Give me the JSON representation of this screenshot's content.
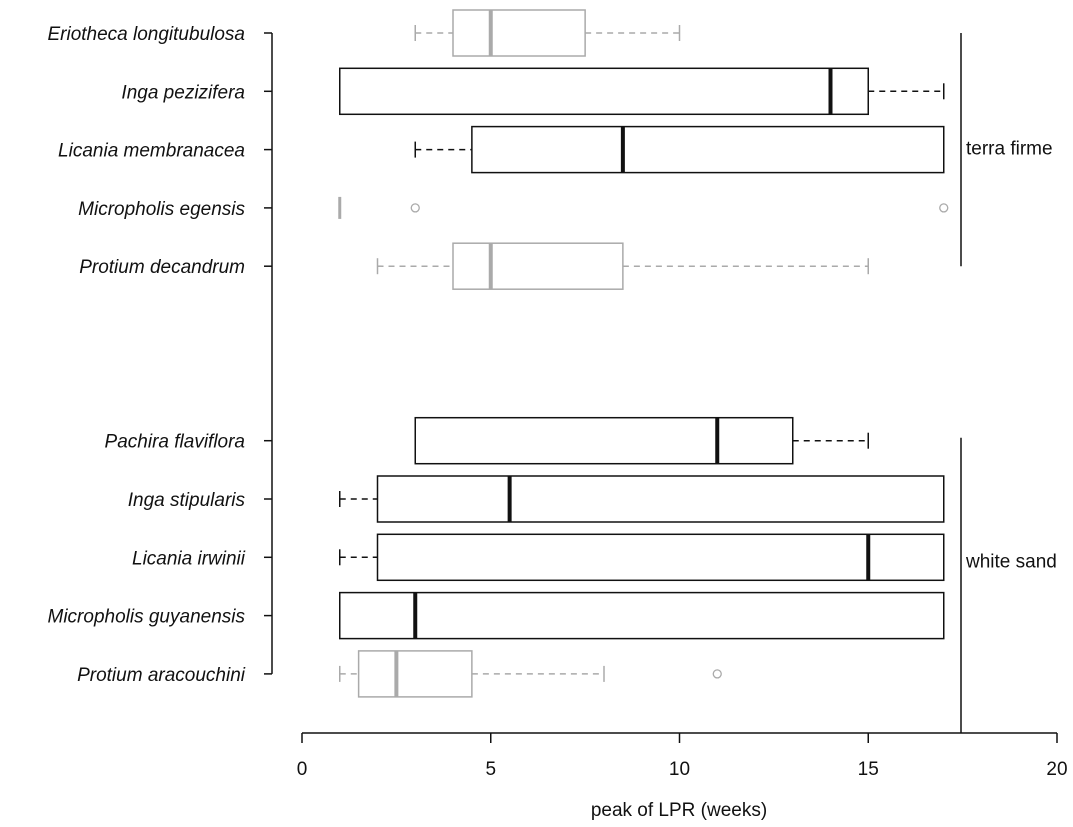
{
  "chart_data": {
    "type": "boxplot",
    "orientation": "horizontal",
    "xlabel": "peak of LPR (weeks)",
    "xlim": [
      0,
      20
    ],
    "x_ticks": [
      0,
      5,
      10,
      15,
      20
    ],
    "colors": {
      "dark": "#111111",
      "light": "#aaaaaa"
    },
    "groups": [
      {
        "label": "terra firme",
        "first": 0,
        "last": 4
      },
      {
        "label": "white sand",
        "first": 5,
        "last": 9
      }
    ],
    "series": [
      {
        "name": "Eriotheca longitubulosa",
        "group": "terra firme",
        "style": "light",
        "min": 3,
        "q1": 4,
        "median": 5,
        "q3": 7.5,
        "max": 10,
        "outliers": []
      },
      {
        "name": "Inga pezizifera",
        "group": "terra firme",
        "style": "dark",
        "min": 1,
        "q1": 1,
        "median": 14,
        "q3": 15,
        "max": 17,
        "outliers": []
      },
      {
        "name": "Licania membranacea",
        "group": "terra firme",
        "style": "dark",
        "min": 3,
        "q1": 4.5,
        "median": 8.5,
        "q3": 17,
        "max": 17,
        "outliers": []
      },
      {
        "name": "Micropholis egensis",
        "group": "terra firme",
        "style": "light",
        "min": 1,
        "q1": 1,
        "median": 1,
        "q3": 1,
        "max": 1,
        "outliers": [
          3,
          17
        ]
      },
      {
        "name": "Protium decandrum",
        "group": "terra firme",
        "style": "light",
        "min": 2,
        "q1": 4,
        "median": 5,
        "q3": 8.5,
        "max": 15,
        "outliers": []
      },
      {
        "name": "Pachira flaviflora",
        "group": "white sand",
        "style": "dark",
        "min": 3,
        "q1": 3,
        "median": 11,
        "q3": 13,
        "max": 15,
        "outliers": []
      },
      {
        "name": "Inga stipularis",
        "group": "white sand",
        "style": "dark",
        "min": 1,
        "q1": 2,
        "median": 5.5,
        "q3": 17,
        "max": 17,
        "outliers": []
      },
      {
        "name": "Licania irwinii",
        "group": "white sand",
        "style": "dark",
        "min": 1,
        "q1": 2,
        "median": 15,
        "q3": 17,
        "max": 17,
        "outliers": []
      },
      {
        "name": "Micropholis guyanensis",
        "group": "white sand",
        "style": "dark",
        "min": 1,
        "q1": 1,
        "median": 3,
        "q3": 17,
        "max": 17,
        "outliers": []
      },
      {
        "name": "Protium aracouchini",
        "group": "white sand",
        "style": "light",
        "min": 1,
        "q1": 1.5,
        "median": 2.5,
        "q3": 4.5,
        "max": 8,
        "outliers": [
          11
        ]
      }
    ]
  }
}
